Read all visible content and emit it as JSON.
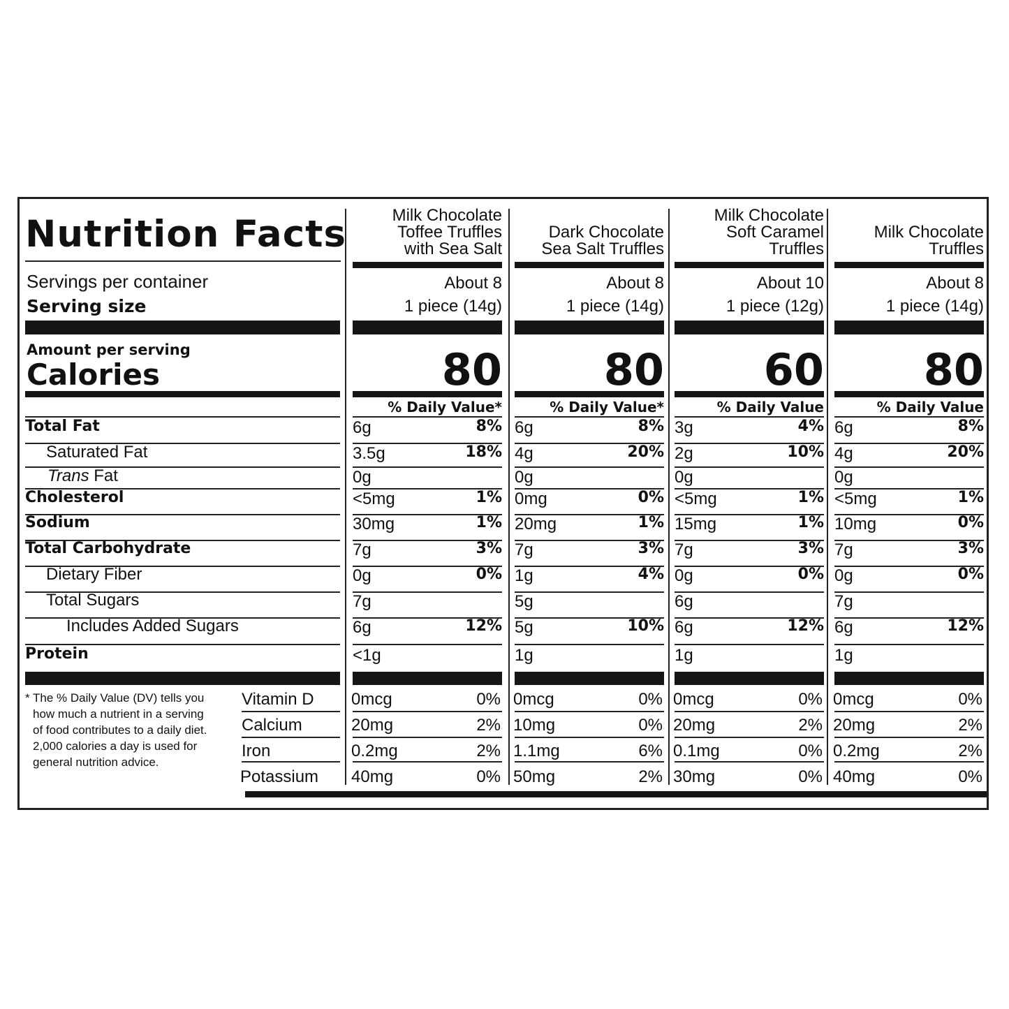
{
  "title": "Nutrition Facts",
  "left": {
    "servings_label": "Servings per container",
    "serving_size_label": "Serving size",
    "amount_per_serving": "Amount per serving",
    "calories_label": "Calories"
  },
  "dv_header": [
    "% Daily Value*",
    "% Daily Value*",
    "% Daily Value",
    "% Daily Value"
  ],
  "nutrients": [
    {
      "label": "Total Fat",
      "bold": true
    },
    {
      "label": "Saturated Fat",
      "bold": false
    },
    {
      "label_italic": "Trans",
      "label_rest": " Fat",
      "bold": false
    },
    {
      "label": "Cholesterol",
      "bold": true
    },
    {
      "label": "Sodium",
      "bold": true
    },
    {
      "label": "Total Carbohydrate",
      "bold": true
    },
    {
      "label": "Dietary Fiber",
      "bold": false
    },
    {
      "label": "Total Sugars",
      "bold": false
    },
    {
      "label": "Includes Added Sugars",
      "bold": false
    },
    {
      "label": "Protein",
      "bold": true
    }
  ],
  "vitamins": [
    "Vitamin D",
    "Calcium",
    "Iron",
    "Potassium"
  ],
  "footnote": [
    "* The % Daily Value (DV) tells you",
    "how much a nutrient in a serving",
    "of food contributes to a daily diet.",
    "2,000 calories a day is used for",
    "general nutrition advice."
  ],
  "products": [
    {
      "name": [
        "Milk Chocolate",
        "Toffee Truffles",
        "with Sea Salt"
      ],
      "servings": "About 8",
      "serving_size": "1 piece (14g)",
      "calories": "80",
      "values": [
        [
          "6g",
          "8%"
        ],
        [
          "3.5g",
          "18%"
        ],
        [
          "0g",
          ""
        ],
        [
          "<5mg",
          "1%"
        ],
        [
          "30mg",
          "1%"
        ],
        [
          "7g",
          "3%"
        ],
        [
          "0g",
          "0%"
        ],
        [
          "7g",
          ""
        ],
        [
          "6g",
          "12%"
        ],
        [
          "<1g",
          ""
        ]
      ],
      "vitamins": [
        [
          "0mcg",
          "0%"
        ],
        [
          "20mg",
          "2%"
        ],
        [
          "0.2mg",
          "2%"
        ],
        [
          "40mg",
          "0%"
        ]
      ]
    },
    {
      "name": [
        "Dark Chocolate",
        "Sea Salt Truffles"
      ],
      "servings": "About 8",
      "serving_size": "1 piece (14g)",
      "calories": "80",
      "values": [
        [
          "6g",
          "8%"
        ],
        [
          "4g",
          "20%"
        ],
        [
          "0g",
          ""
        ],
        [
          "0mg",
          "0%"
        ],
        [
          "20mg",
          "1%"
        ],
        [
          "7g",
          "3%"
        ],
        [
          "1g",
          "4%"
        ],
        [
          "5g",
          ""
        ],
        [
          "5g",
          "10%"
        ],
        [
          "1g",
          ""
        ]
      ],
      "vitamins": [
        [
          "0mcg",
          "0%"
        ],
        [
          "10mg",
          "0%"
        ],
        [
          "1.1mg",
          "6%"
        ],
        [
          "50mg",
          "2%"
        ]
      ]
    },
    {
      "name": [
        "Milk Chocolate",
        "Soft Caramel",
        "Truffles"
      ],
      "servings": "About 10",
      "serving_size": "1 piece (12g)",
      "calories": "60",
      "values": [
        [
          "3g",
          "4%"
        ],
        [
          "2g",
          "10%"
        ],
        [
          "0g",
          ""
        ],
        [
          "<5mg",
          "1%"
        ],
        [
          "15mg",
          "1%"
        ],
        [
          "7g",
          "3%"
        ],
        [
          "0g",
          "0%"
        ],
        [
          "6g",
          ""
        ],
        [
          "6g",
          "12%"
        ],
        [
          "1g",
          ""
        ]
      ],
      "vitamins": [
        [
          "0mcg",
          "0%"
        ],
        [
          "20mg",
          "2%"
        ],
        [
          "0.1mg",
          "0%"
        ],
        [
          "30mg",
          "0%"
        ]
      ]
    },
    {
      "name": [
        "Milk Chocolate",
        "Truffles"
      ],
      "servings": "About 8",
      "serving_size": "1 piece (14g)",
      "calories": "80",
      "values": [
        [
          "6g",
          "8%"
        ],
        [
          "4g",
          "20%"
        ],
        [
          "0g",
          ""
        ],
        [
          "<5mg",
          "1%"
        ],
        [
          "10mg",
          "0%"
        ],
        [
          "7g",
          "3%"
        ],
        [
          "0g",
          "0%"
        ],
        [
          "7g",
          ""
        ],
        [
          "6g",
          "12%"
        ],
        [
          "1g",
          ""
        ]
      ],
      "vitamins": [
        [
          "0mcg",
          "0%"
        ],
        [
          "20mg",
          "2%"
        ],
        [
          "0.2mg",
          "2%"
        ],
        [
          "40mg",
          "0%"
        ]
      ]
    }
  ]
}
